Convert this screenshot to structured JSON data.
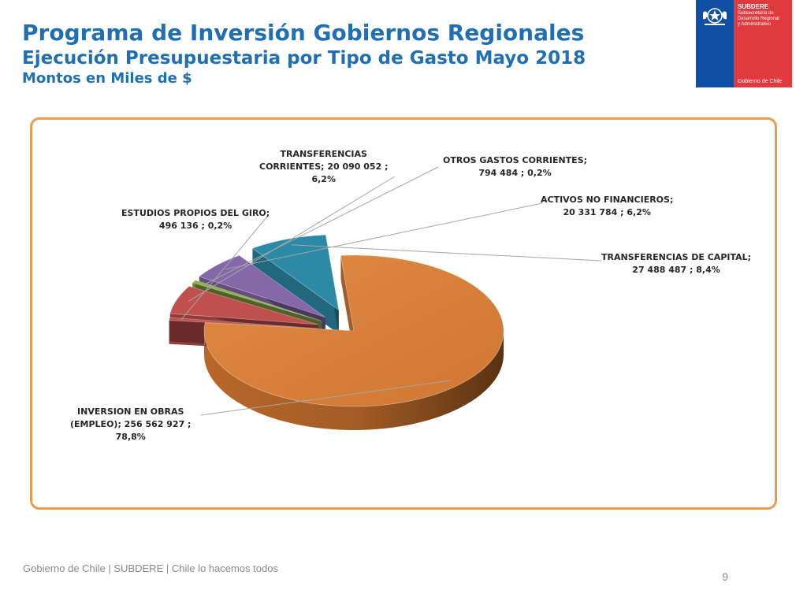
{
  "header": {
    "title": "Programa de Inversión Gobiernos Regionales",
    "subtitle": "Ejecución Presupuestaria por Tipo de Gasto Mayo 2018",
    "units": "Montos en Miles de $"
  },
  "logo": {
    "org": "SUBDERE",
    "org_lines": [
      "Subsecretaría de",
      "Desarrollo Regional",
      "y Administrativo"
    ],
    "gov": "Gobierno de Chile"
  },
  "chart_data": {
    "type": "pie",
    "style": "3d-exploded",
    "labels": [
      "INVERSION EN OBRAS (EMPLEO)",
      "ESTUDIOS PROPIOS DEL GIRO",
      "TRANSFERENCIAS CORRIENTES",
      "OTROS GASTOS CORRIENTES",
      "ACTIVOS NO FINANCIEROS",
      "TRANSFERENCIAS DE CAPITAL"
    ],
    "values": [
      256562927,
      496136,
      20090052,
      794484,
      20331784,
      27488487
    ],
    "percents": [
      "78,8%",
      "0,2%",
      "6,2%",
      "0,2%",
      "6,2%",
      "8,4%"
    ],
    "colors": [
      "#d57d39",
      "#c0504d",
      "#c0504d",
      "#8fb04a",
      "#8568a8",
      "#2c8aa6"
    ],
    "data_labels": [
      [
        "INVERSION EN OBRAS",
        "(EMPLEO);  256 562 927 ;",
        "78,8%"
      ],
      [
        "ESTUDIOS PROPIOS DEL GIRO;",
        "496 136 ; 0,2%"
      ],
      [
        "TRANSFERENCIAS",
        "CORRIENTES;  20 090 052 ;",
        "6,2%"
      ],
      [
        "OTROS GASTOS CORRIENTES;",
        "794 484 ; 0,2%"
      ],
      [
        "ACTIVOS NO FINANCIEROS;",
        "20 331 784 ; 6,2%"
      ],
      [
        "TRANSFERENCIAS DE CAPITAL;",
        "27 488 487 ; 8,4%"
      ]
    ]
  },
  "footer": {
    "text": "Gobierno de Chile | SUBDERE | Chile lo hacemos todos",
    "page": "9"
  }
}
